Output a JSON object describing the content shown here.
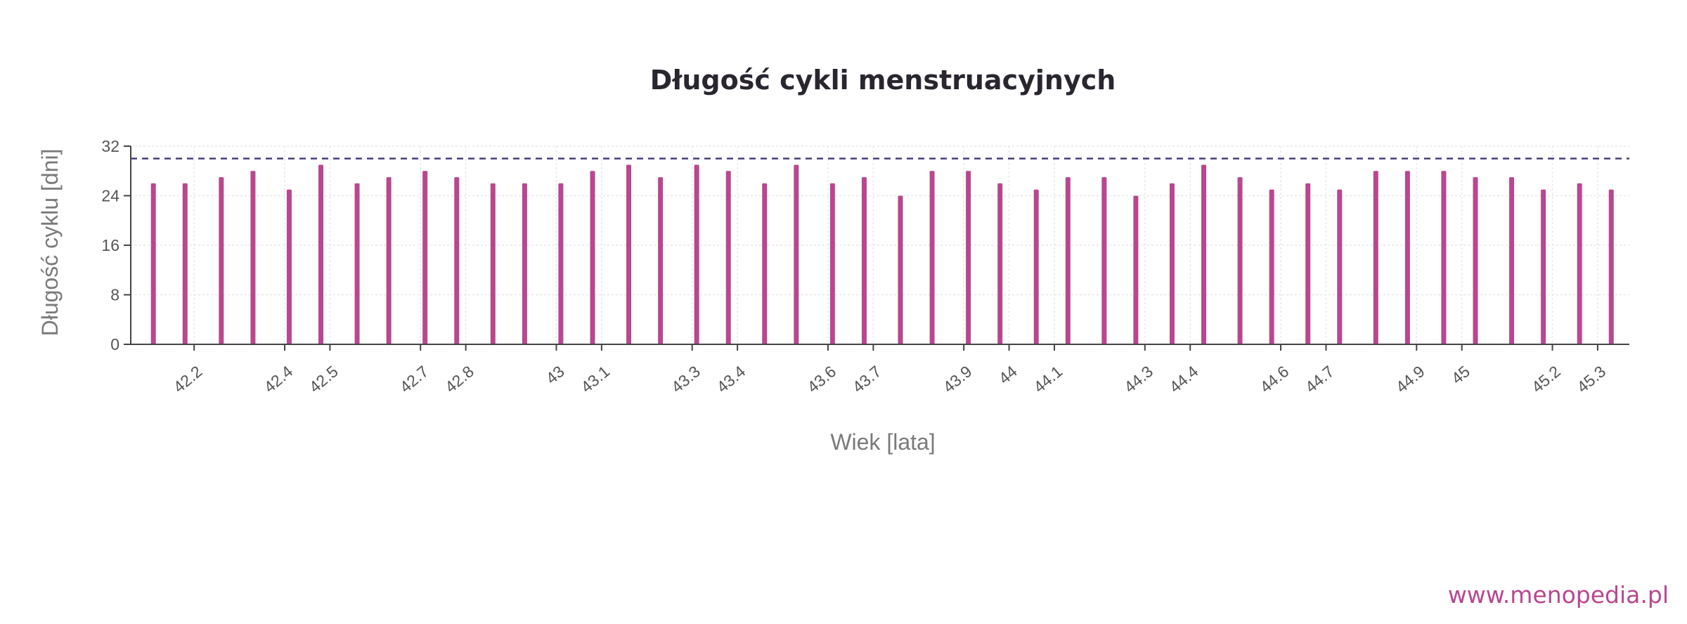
{
  "watermark": "www.menopedia.pl",
  "colors": {
    "bar": "#b8478f",
    "reference_line": "#4b3d7a",
    "grid": "#e8e8e8",
    "axis": "#444444"
  },
  "chart_data": {
    "type": "bar",
    "title": "Długość cykli menstruacyjnych",
    "xlabel": "Wiek [lata]",
    "ylabel": "Długość cyklu [dni]",
    "ylim": [
      0,
      32
    ],
    "yticks": [
      0,
      8,
      16,
      24,
      32
    ],
    "xlim": [
      42.06,
      45.37
    ],
    "xticks": [
      42.2,
      42.4,
      42.5,
      42.7,
      42.8,
      43,
      43.1,
      43.3,
      43.4,
      43.6,
      43.7,
      43.9,
      44,
      44.1,
      44.3,
      44.4,
      44.6,
      44.7,
      44.9,
      45,
      45.2,
      45.3
    ],
    "grid": true,
    "reference_line": {
      "y": 30,
      "style": "dashed"
    },
    "x": [
      42.11,
      42.18,
      42.26,
      42.33,
      42.41,
      42.48,
      42.56,
      42.63,
      42.71,
      42.78,
      42.86,
      42.93,
      43.01,
      43.08,
      43.16,
      43.23,
      43.31,
      43.38,
      43.46,
      43.53,
      43.61,
      43.68,
      43.76,
      43.83,
      43.91,
      43.98,
      44.06,
      44.13,
      44.21,
      44.28,
      44.36,
      44.43,
      44.51,
      44.58,
      44.66,
      44.73,
      44.81,
      44.88,
      44.96,
      45.03,
      45.11,
      45.18,
      45.26,
      45.33
    ],
    "values": [
      26,
      26,
      27,
      28,
      25,
      29,
      26,
      27,
      28,
      27,
      26,
      26,
      26,
      28,
      29,
      27,
      29,
      28,
      26,
      29,
      26,
      27,
      24,
      28,
      28,
      26,
      25,
      27,
      27,
      24,
      26,
      29,
      27,
      25,
      26,
      25,
      28,
      28,
      28,
      27,
      27,
      25,
      26,
      25
    ]
  }
}
